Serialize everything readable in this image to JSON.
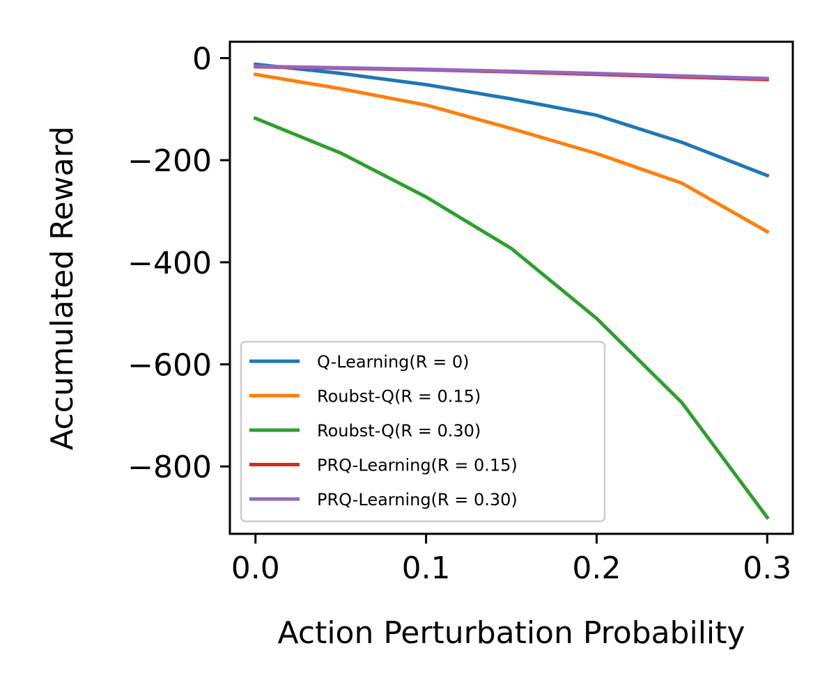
{
  "chart_data": {
    "type": "line",
    "xlabel": "Action Perturbation Probability",
    "ylabel": "Accumulated Reward",
    "x": [
      0.0,
      0.05,
      0.1,
      0.15,
      0.2,
      0.25,
      0.3
    ],
    "xlim": [
      -0.015,
      0.315
    ],
    "ylim": [
      -932,
      32
    ],
    "xticks": [
      0.0,
      0.1,
      0.2,
      0.3
    ],
    "xtick_labels": [
      "0.0",
      "0.1",
      "0.2",
      "0.3"
    ],
    "yticks": [
      0,
      -200,
      -400,
      -600,
      -800
    ],
    "ytick_labels": [
      "0",
      "−200",
      "−400",
      "−600",
      "−800"
    ],
    "grid": false,
    "legend_position": "lower-left",
    "series": [
      {
        "name": "Q-Learning(R = 0)",
        "color": "#1f77b4",
        "values": [
          -12,
          -30,
          -52,
          -80,
          -112,
          -165,
          -230
        ]
      },
      {
        "name": "Roubst-Q(R = 0.15)",
        "color": "#ff7f0e",
        "values": [
          -32,
          -60,
          -92,
          -138,
          -187,
          -245,
          -340
        ]
      },
      {
        "name": "Roubst-Q(R = 0.30)",
        "color": "#2ca02c",
        "values": [
          -118,
          -186,
          -272,
          -373,
          -510,
          -675,
          -900
        ]
      },
      {
        "name": "PRQ-Learning(R = 0.15)",
        "color": "#d62728",
        "values": [
          -17,
          -20,
          -23,
          -27,
          -32,
          -37,
          -42
        ]
      },
      {
        "name": "PRQ-Learning(R = 0.30)",
        "color": "#9467bd",
        "values": [
          -16,
          -19,
          -22,
          -26,
          -30,
          -35,
          -40
        ]
      }
    ]
  }
}
